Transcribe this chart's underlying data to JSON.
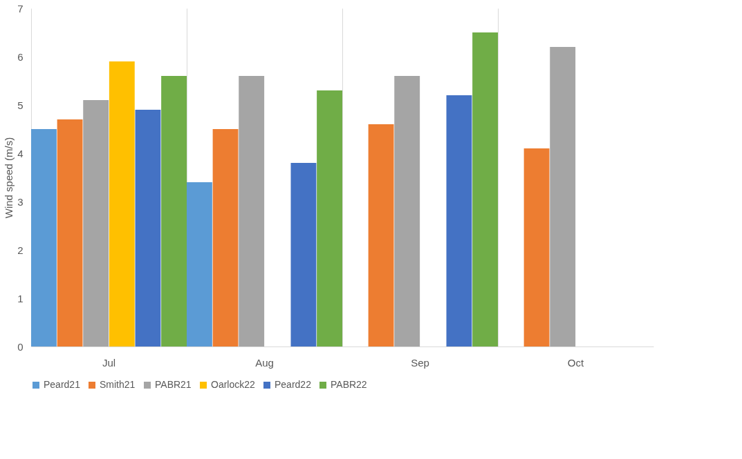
{
  "chart_data": {
    "type": "bar",
    "ylabel": "Wind speed (m/s)",
    "categories": [
      "Jul",
      "Aug",
      "Sep",
      "Oct"
    ],
    "ylim": [
      0,
      7
    ],
    "yticks": [
      0,
      1,
      2,
      3,
      4,
      5,
      6,
      7
    ],
    "grid": "x",
    "legend": "bottom",
    "series": [
      {
        "name": "Peard21",
        "color": "#5b9bd5",
        "values": [
          4.5,
          3.4,
          null,
          null
        ]
      },
      {
        "name": "Smith21",
        "color": "#ed7d31",
        "values": [
          4.7,
          4.5,
          4.6,
          4.1
        ]
      },
      {
        "name": "PABR21",
        "color": "#a5a5a5",
        "values": [
          5.1,
          5.6,
          5.6,
          6.2
        ]
      },
      {
        "name": "Oarlock22",
        "color": "#ffc000",
        "values": [
          5.9,
          null,
          null,
          null
        ]
      },
      {
        "name": "Peard22",
        "color": "#4472c4",
        "values": [
          4.9,
          3.8,
          5.2,
          null
        ]
      },
      {
        "name": "PABR22",
        "color": "#70ad47",
        "values": [
          5.6,
          5.3,
          6.5,
          null
        ]
      }
    ]
  }
}
